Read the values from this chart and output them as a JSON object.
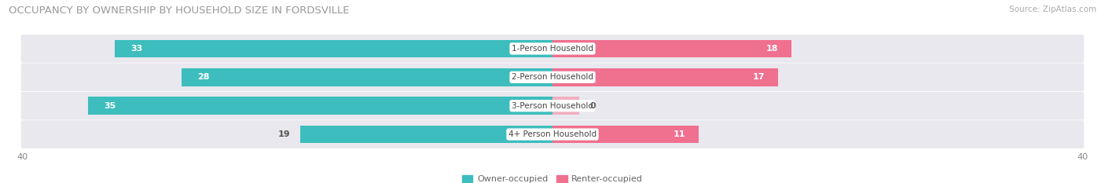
{
  "title": "OCCUPANCY BY OWNERSHIP BY HOUSEHOLD SIZE IN FORDSVILLE",
  "source": "Source: ZipAtlas.com",
  "categories": [
    "1-Person Household",
    "2-Person Household",
    "3-Person Household",
    "4+ Person Household"
  ],
  "owner_values": [
    33,
    28,
    35,
    19
  ],
  "renter_values": [
    18,
    17,
    0,
    11
  ],
  "owner_color": "#3dbdbd",
  "renter_color": "#f07090",
  "renter_color_zero": "#f0b0c0",
  "row_bg_color": "#e8e8ee",
  "xlim": 40,
  "title_fontsize": 9.5,
  "source_fontsize": 7.5,
  "label_fontsize": 7.5,
  "value_fontsize": 8,
  "tick_fontsize": 8,
  "legend_fontsize": 8,
  "bar_height": 0.62
}
